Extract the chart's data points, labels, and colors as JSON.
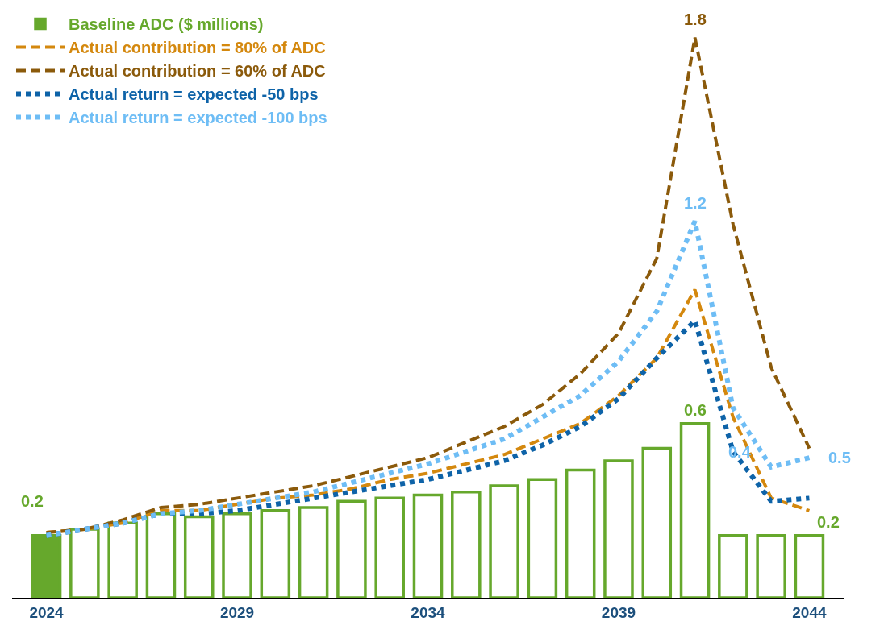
{
  "chart_data": {
    "type": "bar",
    "x": [
      2024,
      2025,
      2026,
      2027,
      2028,
      2029,
      2030,
      2031,
      2032,
      2033,
      2034,
      2035,
      2036,
      2037,
      2038,
      2039,
      2040,
      2041,
      2042,
      2043,
      2044
    ],
    "xlim": [
      2023.1,
      2044.9
    ],
    "xticks": [
      2024,
      2029,
      2034,
      2039,
      2044
    ],
    "legend": "top left",
    "marker": "none",
    "series": [
      {
        "name": "Baseline ADC ($ millions)",
        "color": "#66a82c",
        "colors": [
          "#66a82c",
          "#ffffff",
          "#ffffff",
          "#ffffff",
          "#ffffff",
          "#ffffff",
          "#ffffff",
          "#ffffff",
          "#ffffff",
          "#ffffff",
          "#ffffff",
          "#ffffff",
          "#ffffff",
          "#ffffff",
          "#ffffff",
          "#ffffff",
          "#ffffff",
          "#ffffff",
          "#ffffff",
          "#ffffff",
          "#ffffff"
        ],
        "values": [
          0.2,
          0.22,
          0.24,
          0.27,
          0.26,
          0.27,
          0.28,
          0.29,
          0.31,
          0.32,
          0.33,
          0.34,
          0.36,
          0.38,
          0.41,
          0.44,
          0.48,
          0.56,
          0.2,
          0.2,
          0.2
        ],
        "value_labels": [
          "0.2",
          null,
          null,
          null,
          null,
          null,
          null,
          null,
          null,
          null,
          null,
          null,
          null,
          null,
          null,
          null,
          null,
          "0.6",
          null,
          null,
          "0.2"
        ]
      },
      {
        "name": "Actual contribution = 80% of ADC",
        "type": "line",
        "line_style": "dashed",
        "color": "#d4880e",
        "values": [
          0.21,
          0.22,
          0.24,
          0.28,
          0.28,
          0.3,
          0.32,
          0.33,
          0.35,
          0.38,
          0.4,
          0.43,
          0.46,
          0.51,
          0.56,
          0.65,
          0.77,
          0.99,
          0.58,
          0.32,
          0.28
        ]
      },
      {
        "name": "Actual contribution = 60% of ADC",
        "type": "line",
        "line_style": "dashed",
        "color": "#8b5a0b",
        "values": [
          0.21,
          0.22,
          0.25,
          0.29,
          0.3,
          0.32,
          0.34,
          0.36,
          0.39,
          0.42,
          0.45,
          0.5,
          0.55,
          0.62,
          0.72,
          0.85,
          1.09,
          1.8,
          1.2,
          0.74,
          0.48
        ],
        "value_labels": [
          null,
          null,
          null,
          null,
          null,
          null,
          null,
          null,
          null,
          null,
          null,
          null,
          null,
          null,
          null,
          null,
          null,
          "1.8",
          null,
          null,
          null
        ]
      },
      {
        "name": "Actual return = expected -50 bps",
        "type": "line",
        "line_style": "dotted",
        "color": "#0e63a8",
        "values": [
          0.2,
          0.22,
          0.24,
          0.27,
          0.27,
          0.28,
          0.3,
          0.32,
          0.34,
          0.36,
          0.38,
          0.41,
          0.44,
          0.49,
          0.55,
          0.64,
          0.77,
          0.89,
          0.47,
          0.31,
          0.32
        ]
      },
      {
        "name": "Actual return = expected -100 bps",
        "type": "line",
        "line_style": "dotted",
        "color": "#6ebdf5",
        "values": [
          0.2,
          0.22,
          0.24,
          0.27,
          0.28,
          0.3,
          0.32,
          0.34,
          0.37,
          0.4,
          0.43,
          0.47,
          0.51,
          0.58,
          0.65,
          0.76,
          0.92,
          1.21,
          0.61,
          0.42,
          0.45
        ],
        "value_labels": [
          null,
          null,
          null,
          null,
          null,
          null,
          null,
          null,
          null,
          null,
          null,
          null,
          null,
          null,
          null,
          null,
          null,
          "1.2",
          null,
          "0.4",
          "0.5"
        ]
      }
    ]
  }
}
